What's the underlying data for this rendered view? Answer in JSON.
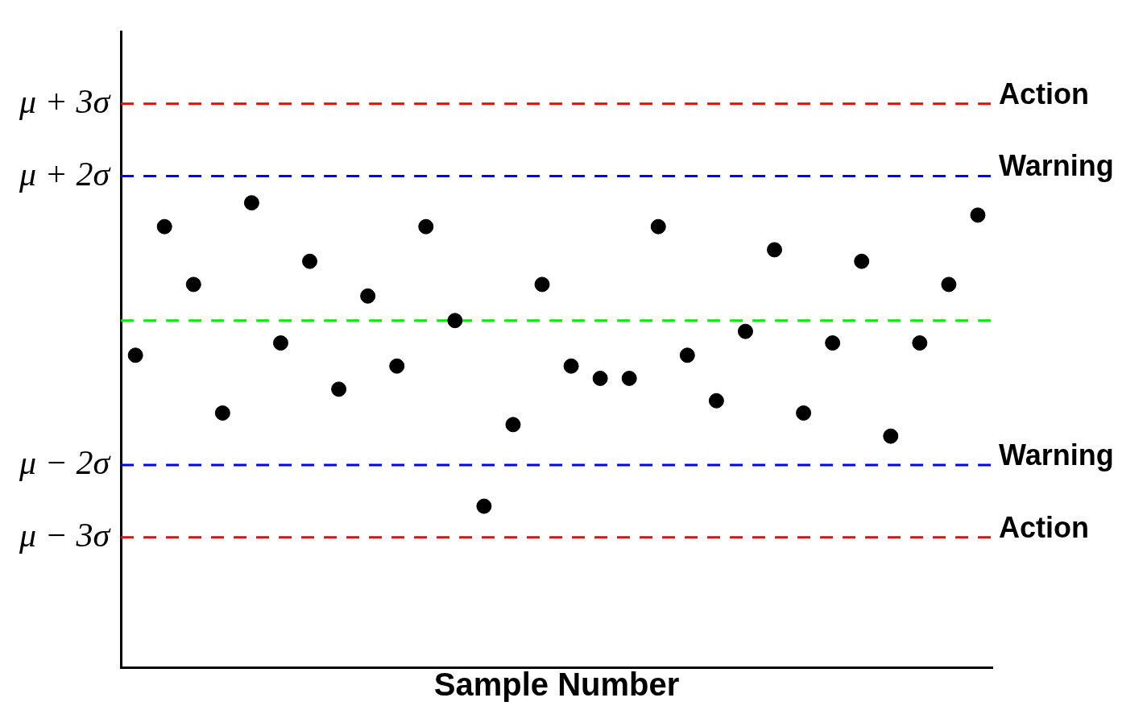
{
  "chart_data": {
    "type": "scatter",
    "xlabel": "Sample Number",
    "categories": [
      null,
      null,
      null,
      null,
      null,
      null,
      null,
      null,
      null,
      null,
      null,
      null,
      null,
      null,
      null,
      null,
      null,
      null,
      null,
      null,
      null,
      null,
      null,
      null,
      null,
      null,
      null,
      null,
      null,
      null
    ],
    "series": [
      {
        "color": "#000000",
        "values": [
          -0.48,
          1.3,
          0.5,
          -1.28,
          1.63,
          -0.31,
          0.82,
          -0.95,
          0.34,
          -0.63,
          1.3,
          0.0,
          -2.57,
          -1.44,
          0.5,
          -0.63,
          -0.8,
          -0.8,
          1.3,
          -0.48,
          -1.11,
          -0.15,
          0.98,
          -1.28,
          -0.31,
          0.82,
          -1.6,
          -0.31,
          0.5,
          1.46
        ]
      }
    ],
    "ylim": [
      -4.8,
      4.0
    ],
    "yticks": [
      {
        "value": 3,
        "label": "μ + 3σ"
      },
      {
        "value": 2,
        "label": "μ + 2σ"
      },
      {
        "value": -2,
        "label": "μ − 2σ"
      },
      {
        "value": -3,
        "label": "μ − 3σ"
      }
    ],
    "ref_lines": [
      {
        "axis": "y",
        "value": 3,
        "label": "Action",
        "color": "#ff0000",
        "line_style": "dashed"
      },
      {
        "axis": "y",
        "value": 2,
        "label": "Warning",
        "color": "#0000ff",
        "line_style": "dashed"
      },
      {
        "axis": "y",
        "value": 0,
        "color": "#00ee00",
        "line_style": "dashed"
      },
      {
        "axis": "y",
        "value": -2,
        "label": "Warning",
        "color": "#0000ff",
        "line_style": "dashed"
      },
      {
        "axis": "y",
        "value": -3,
        "label": "Action",
        "color": "#ff0000",
        "line_style": "dashed"
      }
    ],
    "grid": false,
    "legend": false,
    "marker": "circle",
    "tick_labels": "y"
  }
}
